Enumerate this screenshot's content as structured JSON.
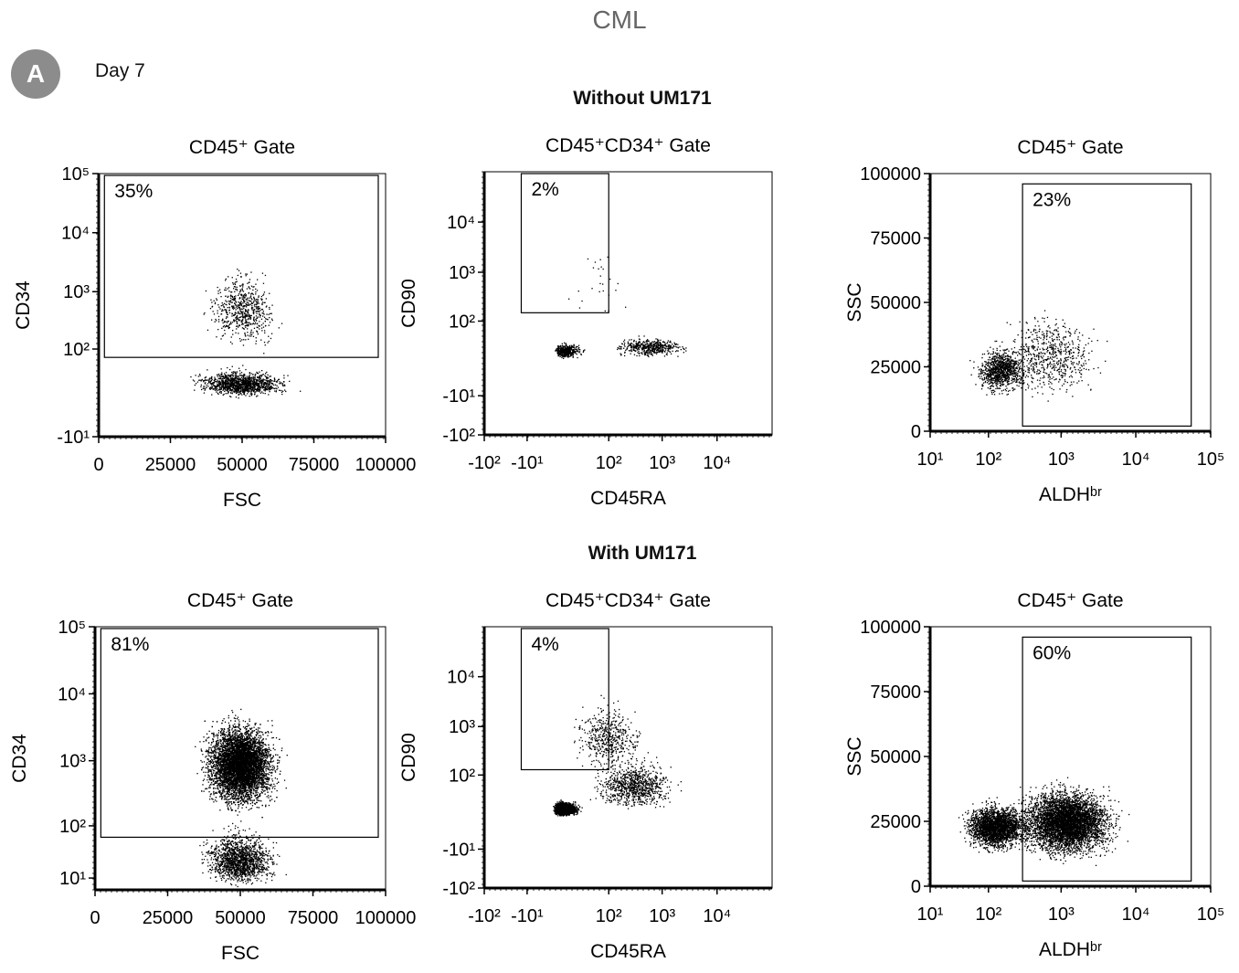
{
  "figure": {
    "title": "CML",
    "panel_label": "A",
    "timepoint": "Day 7",
    "conditions": [
      "Without UM171",
      "With UM171"
    ]
  },
  "chart_data": [
    {
      "type": "scatter",
      "condition": "Without UM171",
      "title": "CD45⁺ Gate",
      "xlabel": "FSC",
      "ylabel": "CD34",
      "xscale": "linear",
      "yscale": "log",
      "xlim": [
        0,
        100000
      ],
      "ylim": [
        -10,
        100000
      ],
      "xticks": [
        "0",
        "25000",
        "50000",
        "75000",
        "100000"
      ],
      "yticks": [
        "-10¹",
        "10²",
        "10³",
        "10⁴",
        "10⁵"
      ],
      "gate": {
        "x": [
          2000,
          100000
        ],
        "y": [
          70,
          100000
        ],
        "label": "35%",
        "percent": 35
      },
      "populations": [
        {
          "name": "CD34+",
          "cx": 50000,
          "cy": 500,
          "sx": 7000,
          "sy": 2.2,
          "n": 650
        },
        {
          "name": "CD34-",
          "cx": 50000,
          "cy": 20,
          "sx": 9000,
          "sy": 1.5,
          "n": 1250
        }
      ]
    },
    {
      "type": "scatter",
      "condition": "Without UM171",
      "title": "CD45⁺CD34⁺ Gate",
      "xlabel": "CD45RA",
      "ylabel": "CD90",
      "xscale": "log",
      "yscale": "log",
      "xlim": [
        -100,
        100000
      ],
      "ylim": [
        -100,
        100000
      ],
      "xticks": [
        "-10²",
        "-10¹",
        "10²",
        "10³",
        "10⁴"
      ],
      "yticks": [
        "-10²",
        "-10¹",
        "10²",
        "10³",
        "10⁴"
      ],
      "gate": {
        "x": [
          -15,
          100
        ],
        "y": [
          150,
          100000
        ],
        "label": "2%",
        "percent": 2
      },
      "populations": [
        {
          "name": "CD45RA- CD90-",
          "cx": 10,
          "cy": 20,
          "sx": 1.8,
          "sy": 1.3,
          "n": 450
        },
        {
          "name": "CD45RA+ CD90-",
          "cx": 600,
          "cy": 25,
          "sx": 2.3,
          "sy": 1.4,
          "n": 500
        },
        {
          "name": "CD90+",
          "cx": 60,
          "cy": 500,
          "sx": 2.5,
          "sy": 3,
          "n": 25
        }
      ]
    },
    {
      "type": "scatter",
      "condition": "Without UM171",
      "title": "CD45⁺ Gate",
      "xlabel": "ALDHᵇʳ",
      "ylabel": "SSC",
      "xscale": "log",
      "yscale": "linear",
      "xlim": [
        10,
        100000
      ],
      "ylim": [
        0,
        100000
      ],
      "xticks": [
        "10¹",
        "10²",
        "10³",
        "10⁴",
        "10⁵"
      ],
      "yticks": [
        "0",
        "25000",
        "50000",
        "75000",
        "100000"
      ],
      "gate": {
        "x": [
          300,
          55000
        ],
        "y": [
          2000,
          96000
        ],
        "label": "23%",
        "percent": 23
      },
      "populations": [
        {
          "name": "ALDH-lo",
          "cx": 150,
          "cy": 24000,
          "sx": 1.6,
          "sy": 5000,
          "n": 1000
        },
        {
          "name": "ALDH-br",
          "cx": 700,
          "cy": 30000,
          "sx": 2.4,
          "sy": 9000,
          "n": 650
        }
      ]
    },
    {
      "type": "scatter",
      "condition": "With UM171",
      "title": "CD45⁺ Gate",
      "xlabel": "FSC",
      "ylabel": "CD34",
      "xscale": "linear",
      "yscale": "log",
      "xlim": [
        0,
        100000
      ],
      "ylim": [
        4,
        100000
      ],
      "xticks": [
        "0",
        "25000",
        "50000",
        "75000",
        "100000"
      ],
      "yticks": [
        "10¹",
        "10²",
        "10³",
        "10⁴",
        "10⁵"
      ],
      "gate": {
        "x": [
          2000,
          100000
        ],
        "y": [
          65,
          100000
        ],
        "label": "81%",
        "percent": 81
      },
      "populations": [
        {
          "name": "CD34+",
          "cx": 50000,
          "cy": 900,
          "sx": 7000,
          "sy": 2.3,
          "n": 6500
        },
        {
          "name": "CD34-",
          "cx": 50000,
          "cy": 25,
          "sx": 7000,
          "sy": 2.0,
          "n": 1500
        }
      ]
    },
    {
      "type": "scatter",
      "condition": "With UM171",
      "title": "CD45⁺CD34⁺ Gate",
      "xlabel": "CD45RA",
      "ylabel": "CD90",
      "xscale": "log",
      "yscale": "log",
      "xlim": [
        -100,
        100000
      ],
      "ylim": [
        -100,
        100000
      ],
      "xticks": [
        "-10²",
        "-10¹",
        "10²",
        "10³",
        "10⁴"
      ],
      "yticks": [
        "-10²",
        "-10¹",
        "10²",
        "10³",
        "10⁴"
      ],
      "gate": {
        "x": [
          -15,
          100
        ],
        "y": [
          130,
          100000
        ],
        "label": "4%",
        "percent": 4
      },
      "populations": [
        {
          "name": "CD45RA- CD90-",
          "cx": 8,
          "cy": 15,
          "sx": 1.7,
          "sy": 1.3,
          "n": 2600
        },
        {
          "name": "CD45RA+ CD90-",
          "cx": 300,
          "cy": 60,
          "sx": 2.8,
          "sy": 2.0,
          "n": 900
        },
        {
          "name": "CD90+",
          "cx": 100,
          "cy": 600,
          "sx": 2.5,
          "sy": 2.5,
          "n": 500
        }
      ]
    },
    {
      "type": "scatter",
      "condition": "With UM171",
      "title": "CD45⁺ Gate",
      "xlabel": "ALDHᵇʳ",
      "ylabel": "SSC",
      "xscale": "log",
      "yscale": "linear",
      "xlim": [
        10,
        100000
      ],
      "ylim": [
        0,
        100000
      ],
      "xticks": [
        "10¹",
        "10²",
        "10³",
        "10⁴",
        "10⁵"
      ],
      "yticks": [
        "0",
        "25000",
        "50000",
        "75000",
        "100000"
      ],
      "gate": {
        "x": [
          300,
          55000
        ],
        "y": [
          2000,
          96000
        ],
        "label": "60%",
        "percent": 60
      },
      "populations": [
        {
          "name": "ALDH-lo",
          "cx": 130,
          "cy": 23000,
          "sx": 1.8,
          "sy": 5000,
          "n": 2600
        },
        {
          "name": "ALDH-br",
          "cx": 1200,
          "cy": 25000,
          "sx": 2.3,
          "sy": 7500,
          "n": 5000
        }
      ]
    }
  ]
}
